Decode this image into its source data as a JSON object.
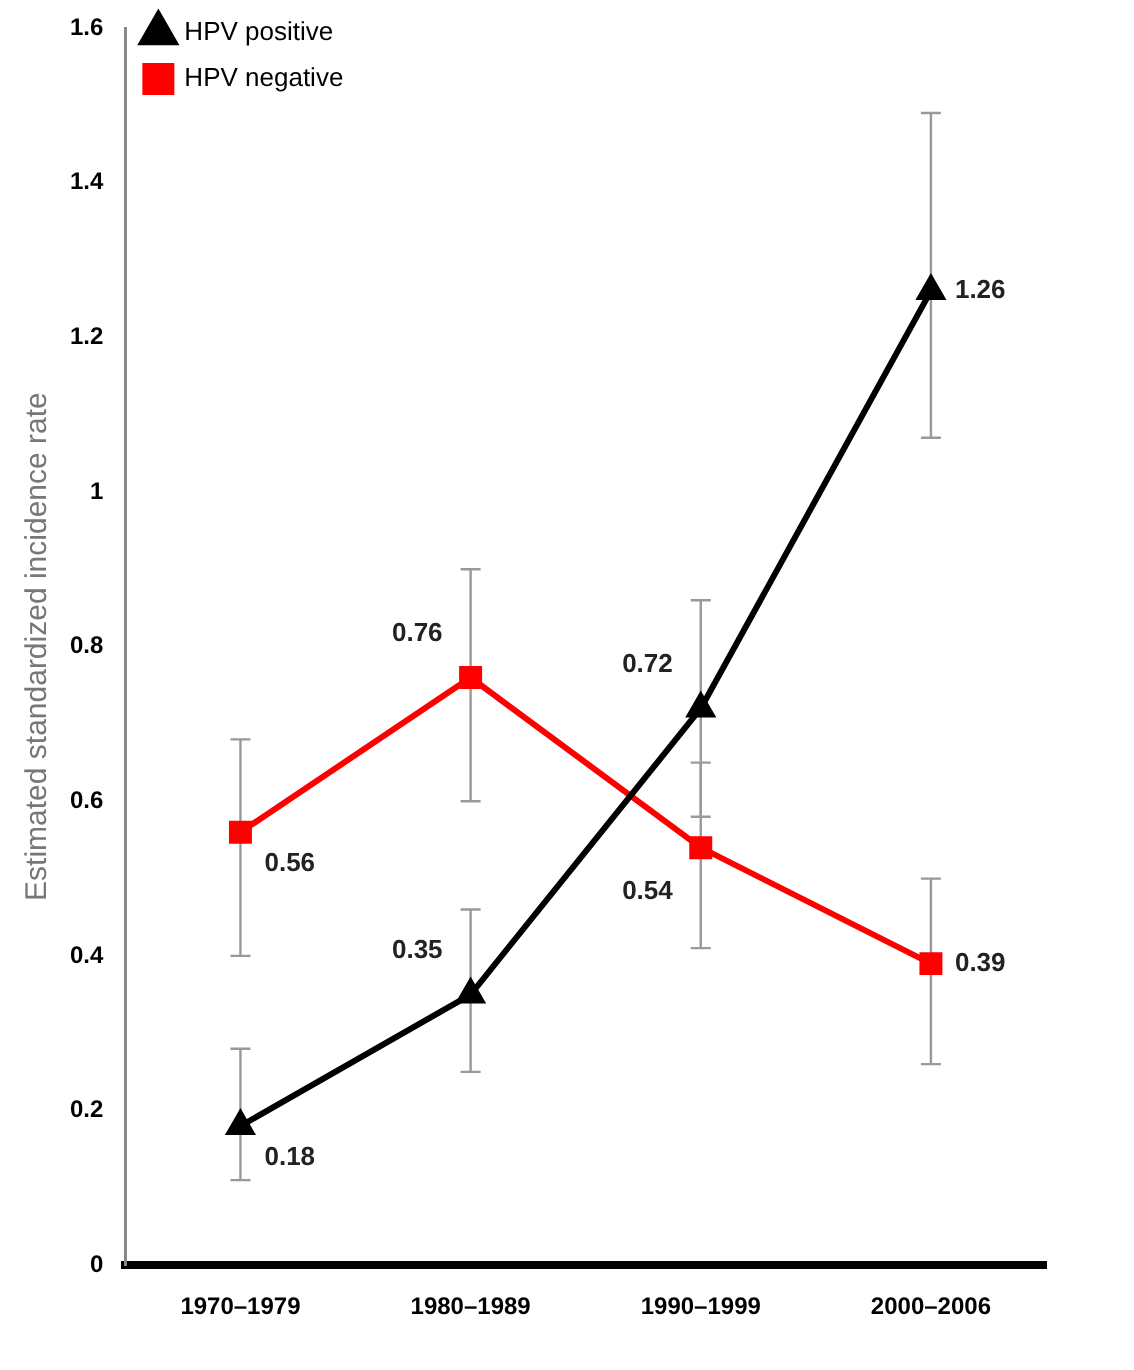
{
  "chart_data": {
    "type": "line",
    "ylabel": "Estimated standardized incidence rate",
    "categories": [
      "1970–1979",
      "1980–1989",
      "1990–1999",
      "2000–2006"
    ],
    "series": [
      {
        "name": "HPV positive",
        "color": "#000000",
        "marker": "triangle",
        "values": [
          0.18,
          0.35,
          0.72,
          1.26
        ],
        "errors": [
          [
            0.11,
            0.28
          ],
          [
            0.25,
            0.46
          ],
          [
            0.58,
            0.86
          ],
          [
            1.07,
            1.49
          ]
        ]
      },
      {
        "name": "HPV negative",
        "color": "#ff0000",
        "marker": "square",
        "values": [
          0.56,
          0.76,
          0.54,
          0.39
        ],
        "errors": [
          [
            0.4,
            0.68
          ],
          [
            0.6,
            0.9
          ],
          [
            0.41,
            0.65
          ],
          [
            0.26,
            0.5
          ]
        ]
      }
    ],
    "ylim": [
      0,
      1.6
    ],
    "yticks": [
      0,
      0.2,
      0.4,
      0.6,
      0.8,
      1,
      1.2,
      1.4,
      1.6
    ],
    "grid": false,
    "legend": "top left",
    "data_labels": true,
    "line_style": "solid"
  }
}
